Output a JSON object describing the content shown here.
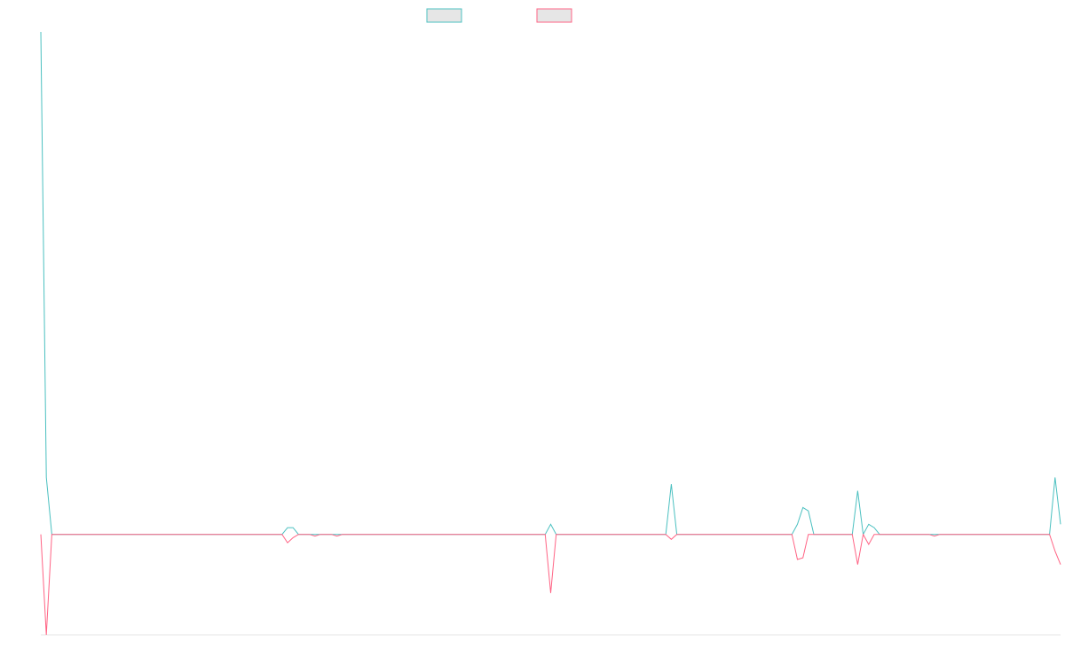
{
  "chart_data": {
    "type": "line",
    "title": "",
    "xlabel": "",
    "ylabel": "",
    "grid": false,
    "legend": "top-center",
    "ylim": [
      -30,
      150
    ],
    "series": [
      {
        "color": "#4bc0c0",
        "points": [
          [
            0,
            150
          ],
          [
            1,
            17
          ],
          [
            2,
            0
          ],
          [
            15,
            0
          ],
          [
            44,
            0
          ],
          [
            45,
            2
          ],
          [
            46,
            2
          ],
          [
            47,
            0
          ],
          [
            49,
            0
          ],
          [
            50,
            0
          ],
          [
            51,
            0
          ],
          [
            53,
            0
          ],
          [
            54,
            0
          ],
          [
            55,
            0
          ],
          [
            92,
            0
          ],
          [
            93,
            3
          ],
          [
            94,
            0
          ],
          [
            114,
            0
          ],
          [
            115,
            15
          ],
          [
            116,
            0
          ],
          [
            137,
            0
          ],
          [
            138,
            3
          ],
          [
            139,
            8
          ],
          [
            140,
            7
          ],
          [
            141,
            0
          ],
          [
            148,
            0
          ],
          [
            149,
            13
          ],
          [
            150,
            0
          ],
          [
            151,
            3
          ],
          [
            152,
            2
          ],
          [
            153,
            0
          ],
          [
            162,
            0
          ],
          [
            163,
            0
          ],
          [
            164,
            0
          ],
          [
            184,
            0
          ],
          [
            185,
            17
          ],
          [
            186,
            3
          ]
        ]
      },
      {
        "color": "#ff6384",
        "points": [
          [
            0,
            0
          ],
          [
            1,
            -30
          ],
          [
            2,
            0
          ],
          [
            15,
            0
          ],
          [
            44,
            0
          ],
          [
            45,
            -2.5
          ],
          [
            46,
            -1
          ],
          [
            47,
            0
          ],
          [
            49,
            0
          ],
          [
            50,
            -0.5
          ],
          [
            51,
            0
          ],
          [
            53,
            0
          ],
          [
            54,
            -0.5
          ],
          [
            55,
            0
          ],
          [
            92,
            0
          ],
          [
            93,
            -17.5
          ],
          [
            94,
            0
          ],
          [
            114,
            0
          ],
          [
            115,
            -1.5
          ],
          [
            116,
            0
          ],
          [
            137,
            0
          ],
          [
            138,
            -7.5
          ],
          [
            139,
            -7
          ],
          [
            140,
            0
          ],
          [
            141,
            0
          ],
          [
            148,
            0
          ],
          [
            149,
            -9
          ],
          [
            150,
            0
          ],
          [
            151,
            -3
          ],
          [
            152,
            0
          ],
          [
            153,
            0
          ],
          [
            162,
            0
          ],
          [
            163,
            -0.5
          ],
          [
            164,
            0
          ],
          [
            184,
            0
          ],
          [
            185,
            -5
          ],
          [
            186,
            -9
          ]
        ]
      }
    ]
  }
}
